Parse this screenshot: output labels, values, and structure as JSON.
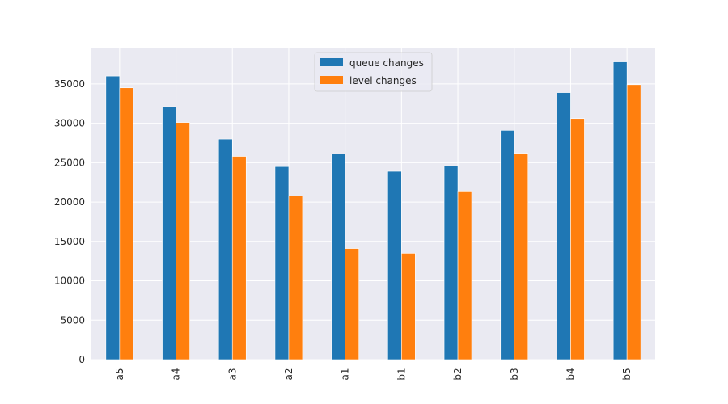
{
  "chart_data": {
    "type": "bar",
    "categories": [
      "a5",
      "a4",
      "a3",
      "a2",
      "a1",
      "b1",
      "b2",
      "b3",
      "b4",
      "b5"
    ],
    "series": [
      {
        "name": "queue changes",
        "color": "#1f77b4",
        "values": [
          36000,
          32100,
          28000,
          24500,
          26100,
          23900,
          24600,
          29100,
          33900,
          37800
        ]
      },
      {
        "name": "level changes",
        "color": "#ff7f0e",
        "values": [
          34500,
          30100,
          25800,
          20800,
          14100,
          13500,
          21300,
          26200,
          30600,
          34900
        ]
      }
    ],
    "ylim": [
      0,
      39500
    ],
    "yticks": [
      0,
      5000,
      10000,
      15000,
      20000,
      25000,
      30000,
      35000
    ],
    "grid": true,
    "legend_position": "top-center",
    "background": "#eaeaf2",
    "xlabel": "",
    "ylabel": "",
    "title": ""
  }
}
